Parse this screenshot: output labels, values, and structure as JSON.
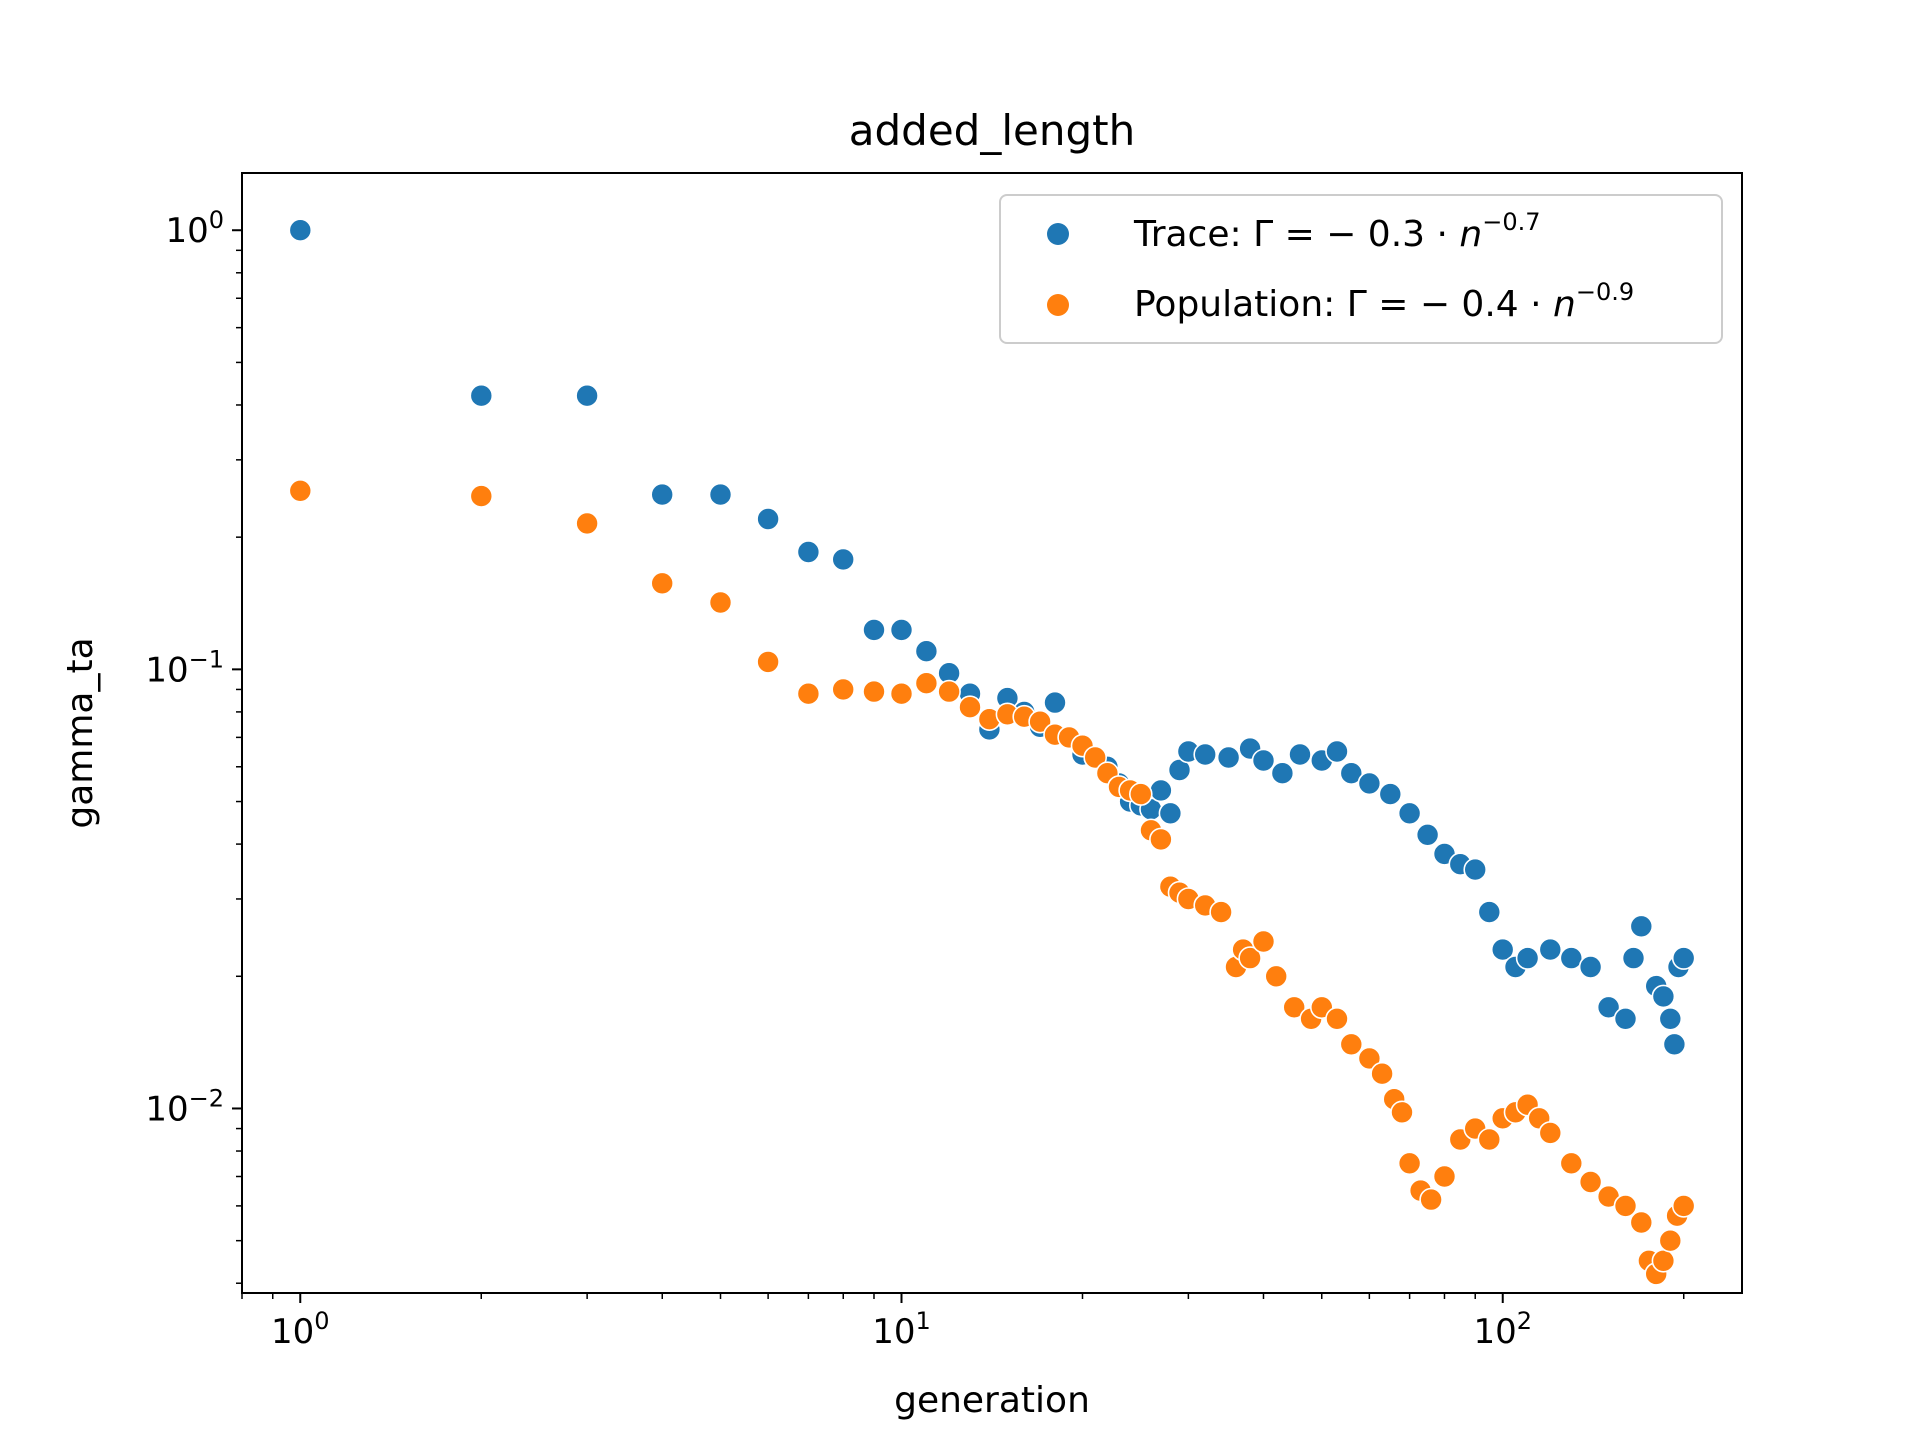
{
  "chart_data": {
    "type": "scatter",
    "title": "added_length",
    "xlabel": "generation",
    "ylabel": "gamma_ta",
    "xscale": "log",
    "yscale": "log",
    "xlim": [
      0.8,
      250
    ],
    "ylim": [
      0.0038,
      1.35
    ],
    "x_ticks": [
      {
        "value": 1,
        "base": "10",
        "exp": "0"
      },
      {
        "value": 10,
        "base": "10",
        "exp": "1"
      },
      {
        "value": 100,
        "base": "10",
        "exp": "2"
      }
    ],
    "y_ticks": [
      {
        "value": 1,
        "base": "10",
        "exp": "0"
      },
      {
        "value": 0.1,
        "base": "10",
        "exp": "−1"
      },
      {
        "value": 0.01,
        "base": "10",
        "exp": "−2"
      }
    ],
    "legend": {
      "placement": "upper right",
      "entries": [
        {
          "prefix": "Trace: Γ = − 0.3 · ",
          "var": "n",
          "exp": "−0.7"
        },
        {
          "prefix": "Population: Γ = − 0.4 · ",
          "var": "n",
          "exp": "−0.9"
        }
      ]
    },
    "grid": false,
    "series": [
      {
        "name": "Trace: Γ = − 0.3 · n^−0.7",
        "color": "#1f77b4",
        "anchors": [
          [
            1,
            1.0
          ],
          [
            2,
            0.42
          ],
          [
            3,
            0.42
          ],
          [
            4,
            0.25
          ],
          [
            5,
            0.25
          ],
          [
            6,
            0.22
          ],
          [
            7,
            0.185
          ],
          [
            8,
            0.178
          ],
          [
            9,
            0.123
          ],
          [
            10,
            0.123
          ],
          [
            11,
            0.11
          ],
          [
            12,
            0.098
          ],
          [
            13,
            0.088
          ],
          [
            14,
            0.073
          ],
          [
            15,
            0.086
          ],
          [
            16,
            0.08
          ],
          [
            17,
            0.074
          ],
          [
            18,
            0.084
          ],
          [
            19,
            0.07
          ],
          [
            20,
            0.064
          ],
          [
            21,
            0.063
          ],
          [
            22,
            0.06
          ],
          [
            23,
            0.055
          ],
          [
            24,
            0.05
          ],
          [
            25,
            0.049
          ],
          [
            26,
            0.048
          ],
          [
            27,
            0.053
          ],
          [
            28,
            0.047
          ],
          [
            29,
            0.059
          ],
          [
            30,
            0.065
          ],
          [
            32,
            0.064
          ],
          [
            35,
            0.063
          ],
          [
            38,
            0.066
          ],
          [
            40,
            0.062
          ],
          [
            43,
            0.058
          ],
          [
            46,
            0.064
          ],
          [
            50,
            0.062
          ],
          [
            53,
            0.065
          ],
          [
            56,
            0.058
          ],
          [
            60,
            0.055
          ],
          [
            65,
            0.052
          ],
          [
            70,
            0.047
          ],
          [
            75,
            0.042
          ],
          [
            80,
            0.038
          ],
          [
            85,
            0.036
          ],
          [
            90,
            0.035
          ],
          [
            95,
            0.028
          ],
          [
            100,
            0.023
          ],
          [
            105,
            0.021
          ],
          [
            110,
            0.022
          ],
          [
            120,
            0.023
          ],
          [
            130,
            0.022
          ],
          [
            140,
            0.021
          ],
          [
            150,
            0.017
          ],
          [
            160,
            0.016
          ],
          [
            165,
            0.022
          ],
          [
            170,
            0.026
          ],
          [
            180,
            0.019
          ],
          [
            185,
            0.018
          ],
          [
            190,
            0.016
          ],
          [
            193,
            0.014
          ],
          [
            196,
            0.021
          ],
          [
            200,
            0.022
          ]
        ]
      },
      {
        "name": "Population: Γ = − 0.4 · n^−0.9",
        "color": "#ff7f0e",
        "anchors": [
          [
            1,
            0.255
          ],
          [
            2,
            0.248
          ],
          [
            3,
            0.215
          ],
          [
            4,
            0.157
          ],
          [
            5,
            0.142
          ],
          [
            6,
            0.104
          ],
          [
            7,
            0.088
          ],
          [
            8,
            0.09
          ],
          [
            9,
            0.089
          ],
          [
            10,
            0.088
          ],
          [
            11,
            0.093
          ],
          [
            12,
            0.089
          ],
          [
            13,
            0.082
          ],
          [
            14,
            0.077
          ],
          [
            15,
            0.079
          ],
          [
            16,
            0.078
          ],
          [
            17,
            0.076
          ],
          [
            18,
            0.071
          ],
          [
            19,
            0.07
          ],
          [
            20,
            0.067
          ],
          [
            21,
            0.063
          ],
          [
            22,
            0.058
          ],
          [
            23,
            0.054
          ],
          [
            24,
            0.053
          ],
          [
            25,
            0.052
          ],
          [
            26,
            0.043
          ],
          [
            27,
            0.041
          ],
          [
            28,
            0.032
          ],
          [
            29,
            0.031
          ],
          [
            30,
            0.03
          ],
          [
            32,
            0.029
          ],
          [
            34,
            0.028
          ],
          [
            36,
            0.021
          ],
          [
            37,
            0.023
          ],
          [
            38,
            0.022
          ],
          [
            40,
            0.024
          ],
          [
            42,
            0.02
          ],
          [
            45,
            0.017
          ],
          [
            48,
            0.016
          ],
          [
            50,
            0.017
          ],
          [
            53,
            0.016
          ],
          [
            56,
            0.014
          ],
          [
            60,
            0.013
          ],
          [
            63,
            0.012
          ],
          [
            66,
            0.0105
          ],
          [
            68,
            0.0098
          ],
          [
            70,
            0.0075
          ],
          [
            73,
            0.0065
          ],
          [
            76,
            0.0062
          ],
          [
            80,
            0.007
          ],
          [
            85,
            0.0085
          ],
          [
            90,
            0.009
          ],
          [
            95,
            0.0085
          ],
          [
            100,
            0.0095
          ],
          [
            105,
            0.0098
          ],
          [
            110,
            0.0102
          ],
          [
            115,
            0.0095
          ],
          [
            120,
            0.0088
          ],
          [
            130,
            0.0075
          ],
          [
            140,
            0.0068
          ],
          [
            150,
            0.0063
          ],
          [
            160,
            0.006
          ],
          [
            170,
            0.0055
          ],
          [
            175,
            0.0045
          ],
          [
            180,
            0.0042
          ],
          [
            185,
            0.0045
          ],
          [
            190,
            0.005
          ],
          [
            195,
            0.0057
          ],
          [
            200,
            0.006
          ]
        ]
      }
    ]
  }
}
